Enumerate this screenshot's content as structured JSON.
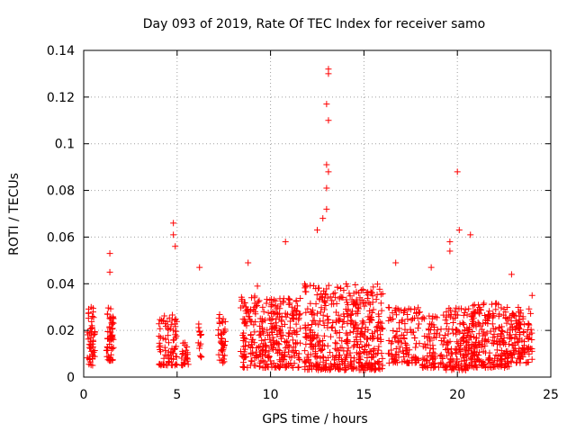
{
  "chart_data": {
    "type": "scatter",
    "title": "Day 093 of 2019, Rate Of TEC Index for receiver samo",
    "xlabel": "GPS time / hours",
    "ylabel": "ROTI / TECUs",
    "xlim": [
      0,
      25
    ],
    "ylim": [
      0,
      0.14
    ],
    "xticks": [
      0,
      5,
      10,
      15,
      20,
      25
    ],
    "yticks": [
      0,
      0.02,
      0.04,
      0.06,
      0.08,
      0.1,
      0.12,
      0.14
    ],
    "xtick_labels": [
      "0",
      "5",
      "10",
      "15",
      "20",
      "25"
    ],
    "ytick_labels": [
      "0",
      "0.02",
      "0.04",
      "0.06",
      "0.08",
      "0.1",
      "0.12",
      "0.14"
    ],
    "grid": true,
    "marker": "+",
    "color": "#ff0000",
    "series": [
      {
        "name": "ROTI",
        "notable_points": [
          {
            "x": 0.4,
            "y": 0.03
          },
          {
            "x": 1.4,
            "y": 0.053
          },
          {
            "x": 1.4,
            "y": 0.045
          },
          {
            "x": 4.8,
            "y": 0.066
          },
          {
            "x": 4.8,
            "y": 0.061
          },
          {
            "x": 4.9,
            "y": 0.056
          },
          {
            "x": 6.2,
            "y": 0.047
          },
          {
            "x": 8.8,
            "y": 0.049
          },
          {
            "x": 9.3,
            "y": 0.039
          },
          {
            "x": 10.8,
            "y": 0.058
          },
          {
            "x": 12.5,
            "y": 0.063
          },
          {
            "x": 12.8,
            "y": 0.068
          },
          {
            "x": 13.1,
            "y": 0.132
          },
          {
            "x": 13.1,
            "y": 0.13
          },
          {
            "x": 13.0,
            "y": 0.117
          },
          {
            "x": 13.1,
            "y": 0.11
          },
          {
            "x": 13.0,
            "y": 0.091
          },
          {
            "x": 13.1,
            "y": 0.088
          },
          {
            "x": 13.0,
            "y": 0.081
          },
          {
            "x": 13.0,
            "y": 0.072
          },
          {
            "x": 16.7,
            "y": 0.049
          },
          {
            "x": 18.6,
            "y": 0.047
          },
          {
            "x": 19.6,
            "y": 0.058
          },
          {
            "x": 19.6,
            "y": 0.054
          },
          {
            "x": 20.0,
            "y": 0.088
          },
          {
            "x": 20.1,
            "y": 0.063
          },
          {
            "x": 20.7,
            "y": 0.061
          },
          {
            "x": 22.9,
            "y": 0.044
          },
          {
            "x": 24.0,
            "y": 0.035
          }
        ],
        "dense_clusters": [
          {
            "x_range": [
              0.2,
              0.6
            ],
            "y_range": [
              0.005,
              0.03
            ],
            "count": 50
          },
          {
            "x_range": [
              1.2,
              1.6
            ],
            "y_range": [
              0.007,
              0.03
            ],
            "count": 60
          },
          {
            "x_range": [
              4.0,
              5.0
            ],
            "y_range": [
              0.005,
              0.027
            ],
            "count": 80
          },
          {
            "x_range": [
              5.2,
              5.6
            ],
            "y_range": [
              0.005,
              0.015
            ],
            "count": 25
          },
          {
            "x_range": [
              6.1,
              6.4
            ],
            "y_range": [
              0.008,
              0.024
            ],
            "count": 15
          },
          {
            "x_range": [
              7.2,
              7.6
            ],
            "y_range": [
              0.006,
              0.027
            ],
            "count": 40
          },
          {
            "x_range": [
              8.4,
              11.6
            ],
            "y_range": [
              0.004,
              0.035
            ],
            "count": 330
          },
          {
            "x_range": [
              11.8,
              16.0
            ],
            "y_range": [
              0.003,
              0.04
            ],
            "count": 480
          },
          {
            "x_range": [
              16.3,
              18.0
            ],
            "y_range": [
              0.006,
              0.03
            ],
            "count": 120
          },
          {
            "x_range": [
              18.1,
              19.4
            ],
            "y_range": [
              0.004,
              0.028
            ],
            "count": 90
          },
          {
            "x_range": [
              19.4,
              20.7
            ],
            "y_range": [
              0.003,
              0.03
            ],
            "count": 140
          },
          {
            "x_range": [
              20.7,
              22.8
            ],
            "y_range": [
              0.004,
              0.032
            ],
            "count": 220
          },
          {
            "x_range": [
              22.8,
              24.0
            ],
            "y_range": [
              0.006,
              0.03
            ],
            "count": 120
          }
        ]
      }
    ]
  }
}
